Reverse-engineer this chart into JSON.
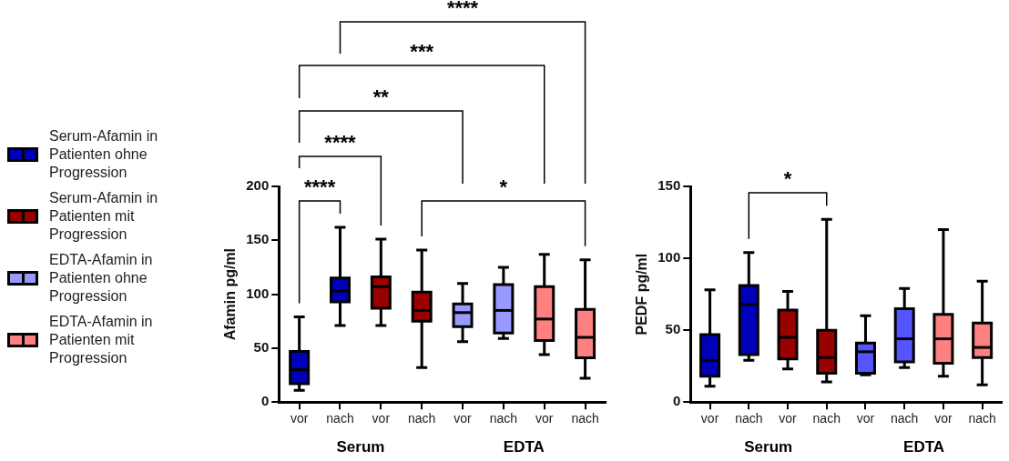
{
  "chart_data": [
    {
      "type": "box",
      "ylabel": "Afamin pg/ml",
      "categories": [
        "vor",
        "nach",
        "vor",
        "nach",
        "vor",
        "nach",
        "vor",
        "nach"
      ],
      "ylim": [
        0,
        200
      ],
      "yticks": [
        0,
        50,
        100,
        150,
        200
      ],
      "grid": false,
      "legend": "left",
      "series": [
        {
          "name": "Serum-Afamin in Patienten ohne Progression",
          "color": "#0000bb",
          "boxes": [
            {
              "low": 11,
              "q1": 17,
              "median": 30,
              "q3": 47,
              "high": 79
            },
            {
              "low": 71,
              "q1": 93,
              "median": 103,
              "q3": 115,
              "high": 162
            },
            null,
            null,
            null,
            null,
            null,
            null
          ]
        },
        {
          "name": "Serum-Afamin in Patienten mit Progression",
          "color": "#990000",
          "boxes": [
            null,
            null,
            {
              "low": 71,
              "q1": 87,
              "median": 107,
              "q3": 116,
              "high": 151
            },
            {
              "low": 32,
              "q1": 75,
              "median": 85,
              "q3": 102,
              "high": 141
            },
            null,
            null,
            null,
            null
          ]
        },
        {
          "name": "EDTA-Afamin in Patienten ohne Progression",
          "color": "#9999ff",
          "boxes": [
            null,
            null,
            null,
            null,
            {
              "low": 56,
              "q1": 70,
              "median": 83,
              "q3": 91,
              "high": 110
            },
            {
              "low": 59,
              "q1": 64,
              "median": 85,
              "q3": 109,
              "high": 125
            },
            null,
            null
          ]
        },
        {
          "name": "EDTA-Afamin in Patienten mit Progression",
          "color": "#ff8080",
          "boxes": [
            null,
            null,
            null,
            null,
            null,
            null,
            {
              "low": 44,
              "q1": 57,
              "median": 77,
              "q3": 107,
              "high": 137
            },
            {
              "low": 22,
              "q1": 41,
              "median": 60,
              "q3": 86,
              "high": 132
            }
          ]
        }
      ],
      "annotations": [
        "****",
        "****",
        "**",
        "***",
        "****",
        "*",
        "Serum",
        "EDTA"
      ]
    },
    {
      "type": "box",
      "ylabel": "PEDF pg/ml",
      "categories": [
        "vor",
        "nach",
        "vor",
        "nach",
        "vor",
        "nach",
        "vor",
        "nach"
      ],
      "ylim": [
        0,
        150
      ],
      "yticks": [
        0,
        50,
        100,
        150
      ],
      "grid": false,
      "series": [
        {
          "color": "#0000bb",
          "boxes": [
            {
              "low": 11,
              "q1": 18,
              "median": 29,
              "q3": 47,
              "high": 78
            },
            {
              "low": 29,
              "q1": 33,
              "median": 68,
              "q3": 81,
              "high": 104
            },
            null,
            null,
            null,
            null,
            null,
            null
          ]
        },
        {
          "color": "#990000",
          "boxes": [
            null,
            null,
            {
              "low": 23,
              "q1": 30,
              "median": 45,
              "q3": 64,
              "high": 77
            },
            {
              "low": 14,
              "q1": 20,
              "median": 31,
              "q3": 50,
              "high": 127
            },
            null,
            null,
            null,
            null
          ]
        },
        {
          "color": "#5555ff",
          "boxes": [
            null,
            null,
            null,
            null,
            {
              "low": 19,
              "q1": 20,
              "median": 35,
              "q3": 41,
              "high": 60
            },
            {
              "low": 24,
              "q1": 28,
              "median": 44,
              "q3": 65,
              "high": 79
            },
            null,
            null
          ]
        },
        {
          "color": "#ff8080",
          "boxes": [
            null,
            null,
            null,
            null,
            null,
            null,
            {
              "low": 18,
              "q1": 27,
              "median": 44,
              "q3": 61,
              "high": 120
            },
            {
              "low": 12,
              "q1": 31,
              "median": 38,
              "q3": 55,
              "high": 84
            }
          ]
        }
      ],
      "annotations": [
        "*",
        "Serum",
        "EDTA"
      ]
    }
  ]
}
